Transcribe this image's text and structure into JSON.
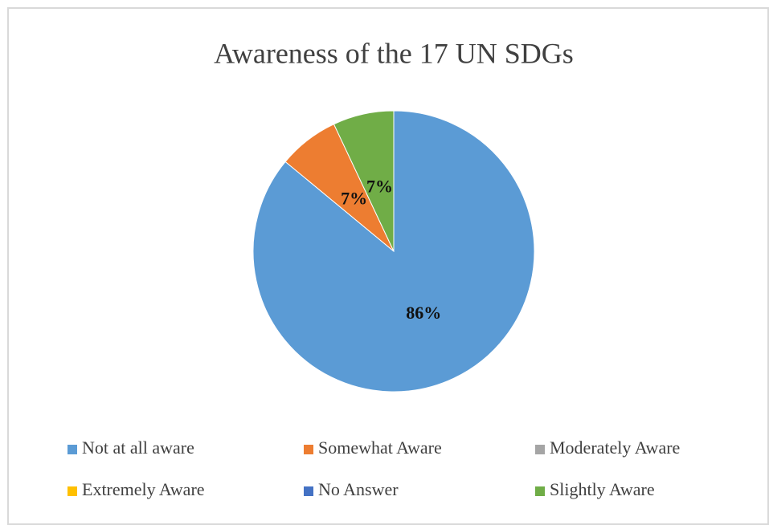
{
  "chart_data": {
    "type": "pie",
    "title": "Awareness of the 17 UN SDGs",
    "categories": [
      "Not at all aware",
      "Somewhat Aware",
      "Moderately Aware",
      "Extremely Aware",
      "No Answer",
      "Slightly Aware"
    ],
    "values": [
      86,
      7,
      0,
      0,
      0,
      7
    ],
    "value_labels": [
      "86%",
      "7%",
      null,
      null,
      null,
      "7%"
    ],
    "colors": [
      "#5b9bd5",
      "#ed7d31",
      "#a5a5a5",
      "#ffc000",
      "#4472c4",
      "#70ad47"
    ],
    "legend": "bottom"
  }
}
